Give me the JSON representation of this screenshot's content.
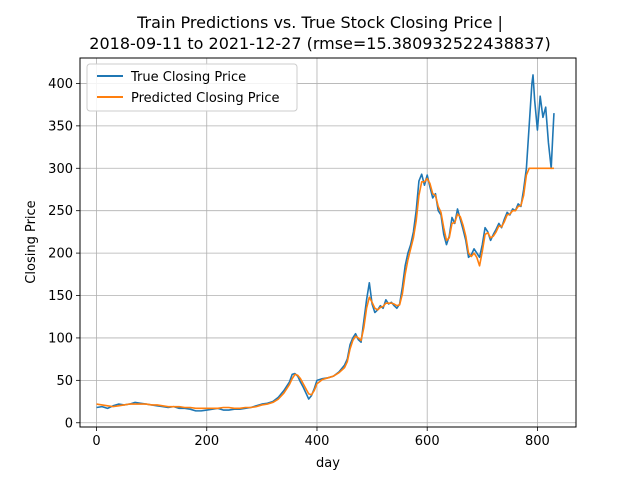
{
  "chart_data": {
    "type": "line",
    "title_line1": "Train Predictions vs. True Stock Closing Price |",
    "title_line2": "2018-09-11 to 2021-12-27 (rmse=15.380932522438837)",
    "xlabel": "day",
    "ylabel": "Closing Price",
    "xlim": [
      -30,
      870
    ],
    "ylim": [
      -5,
      430
    ],
    "x_ticks": [
      0,
      200,
      400,
      600,
      800
    ],
    "y_ticks": [
      0,
      50,
      100,
      150,
      200,
      250,
      300,
      350,
      400
    ],
    "grid": true,
    "legend_position": "upper-left",
    "series": [
      {
        "name": "True Closing Price",
        "color": "#1f77b4",
        "points": [
          [
            0,
            18
          ],
          [
            10,
            19
          ],
          [
            20,
            17
          ],
          [
            30,
            20
          ],
          [
            40,
            22
          ],
          [
            50,
            21
          ],
          [
            60,
            22
          ],
          [
            70,
            24
          ],
          [
            80,
            23
          ],
          [
            90,
            22
          ],
          [
            100,
            21
          ],
          [
            110,
            20
          ],
          [
            120,
            19
          ],
          [
            130,
            18
          ],
          [
            140,
            19
          ],
          [
            150,
            17
          ],
          [
            160,
            17
          ],
          [
            170,
            16
          ],
          [
            180,
            14
          ],
          [
            190,
            14
          ],
          [
            200,
            15
          ],
          [
            210,
            16
          ],
          [
            220,
            17
          ],
          [
            230,
            15
          ],
          [
            240,
            15
          ],
          [
            250,
            16
          ],
          [
            260,
            16
          ],
          [
            270,
            17
          ],
          [
            280,
            18
          ],
          [
            290,
            20
          ],
          [
            300,
            22
          ],
          [
            310,
            23
          ],
          [
            320,
            25
          ],
          [
            330,
            30
          ],
          [
            340,
            38
          ],
          [
            350,
            48
          ],
          [
            355,
            57
          ],
          [
            360,
            58
          ],
          [
            365,
            55
          ],
          [
            370,
            48
          ],
          [
            375,
            42
          ],
          [
            380,
            35
          ],
          [
            385,
            28
          ],
          [
            390,
            32
          ],
          [
            395,
            40
          ],
          [
            400,
            50
          ],
          [
            410,
            52
          ],
          [
            420,
            53
          ],
          [
            430,
            55
          ],
          [
            440,
            60
          ],
          [
            450,
            68
          ],
          [
            455,
            75
          ],
          [
            460,
            92
          ],
          [
            465,
            100
          ],
          [
            470,
            105
          ],
          [
            475,
            98
          ],
          [
            480,
            95
          ],
          [
            485,
            120
          ],
          [
            490,
            145
          ],
          [
            495,
            165
          ],
          [
            500,
            140
          ],
          [
            505,
            130
          ],
          [
            510,
            133
          ],
          [
            515,
            138
          ],
          [
            520,
            135
          ],
          [
            525,
            145
          ],
          [
            530,
            140
          ],
          [
            535,
            142
          ],
          [
            540,
            138
          ],
          [
            545,
            135
          ],
          [
            550,
            140
          ],
          [
            555,
            160
          ],
          [
            560,
            185
          ],
          [
            565,
            200
          ],
          [
            570,
            210
          ],
          [
            575,
            225
          ],
          [
            580,
            250
          ],
          [
            585,
            285
          ],
          [
            590,
            293
          ],
          [
            595,
            280
          ],
          [
            600,
            292
          ],
          [
            605,
            278
          ],
          [
            610,
            265
          ],
          [
            615,
            270
          ],
          [
            620,
            250
          ],
          [
            625,
            245
          ],
          [
            630,
            222
          ],
          [
            635,
            210
          ],
          [
            640,
            220
          ],
          [
            645,
            242
          ],
          [
            650,
            235
          ],
          [
            655,
            252
          ],
          [
            660,
            240
          ],
          [
            665,
            228
          ],
          [
            670,
            215
          ],
          [
            675,
            195
          ],
          [
            680,
            198
          ],
          [
            685,
            205
          ],
          [
            690,
            200
          ],
          [
            695,
            195
          ],
          [
            700,
            210
          ],
          [
            705,
            230
          ],
          [
            710,
            225
          ],
          [
            715,
            215
          ],
          [
            720,
            222
          ],
          [
            725,
            228
          ],
          [
            730,
            235
          ],
          [
            735,
            230
          ],
          [
            740,
            240
          ],
          [
            745,
            248
          ],
          [
            750,
            245
          ],
          [
            755,
            252
          ],
          [
            760,
            250
          ],
          [
            765,
            258
          ],
          [
            770,
            255
          ],
          [
            775,
            275
          ],
          [
            780,
            300
          ],
          [
            785,
            350
          ],
          [
            790,
            400
          ],
          [
            792,
            410
          ],
          [
            795,
            380
          ],
          [
            800,
            345
          ],
          [
            805,
            385
          ],
          [
            810,
            360
          ],
          [
            815,
            372
          ],
          [
            820,
            330
          ],
          [
            825,
            300
          ],
          [
            828,
            340
          ],
          [
            830,
            365
          ]
        ]
      },
      {
        "name": "Predicted Closing Price",
        "color": "#ff7f0e",
        "points": [
          [
            0,
            22
          ],
          [
            10,
            21
          ],
          [
            20,
            20
          ],
          [
            30,
            19
          ],
          [
            40,
            20
          ],
          [
            50,
            21
          ],
          [
            60,
            22
          ],
          [
            70,
            22
          ],
          [
            80,
            22
          ],
          [
            90,
            22
          ],
          [
            100,
            21
          ],
          [
            110,
            21
          ],
          [
            120,
            20
          ],
          [
            130,
            19
          ],
          [
            140,
            19
          ],
          [
            150,
            19
          ],
          [
            160,
            18
          ],
          [
            170,
            18
          ],
          [
            180,
            17
          ],
          [
            190,
            17
          ],
          [
            200,
            17
          ],
          [
            210,
            17
          ],
          [
            220,
            17
          ],
          [
            230,
            18
          ],
          [
            240,
            18
          ],
          [
            250,
            17
          ],
          [
            260,
            17
          ],
          [
            270,
            18
          ],
          [
            280,
            18
          ],
          [
            290,
            19
          ],
          [
            300,
            21
          ],
          [
            310,
            22
          ],
          [
            320,
            24
          ],
          [
            330,
            28
          ],
          [
            340,
            35
          ],
          [
            350,
            45
          ],
          [
            355,
            52
          ],
          [
            360,
            57
          ],
          [
            365,
            56
          ],
          [
            370,
            52
          ],
          [
            375,
            46
          ],
          [
            380,
            40
          ],
          [
            385,
            34
          ],
          [
            390,
            33
          ],
          [
            395,
            38
          ],
          [
            400,
            46
          ],
          [
            410,
            51
          ],
          [
            420,
            53
          ],
          [
            430,
            55
          ],
          [
            440,
            59
          ],
          [
            450,
            65
          ],
          [
            455,
            72
          ],
          [
            460,
            87
          ],
          [
            465,
            97
          ],
          [
            470,
            102
          ],
          [
            475,
            100
          ],
          [
            480,
            97
          ],
          [
            485,
            112
          ],
          [
            490,
            135
          ],
          [
            495,
            148
          ],
          [
            500,
            142
          ],
          [
            505,
            135
          ],
          [
            510,
            133
          ],
          [
            515,
            136
          ],
          [
            520,
            137
          ],
          [
            525,
            141
          ],
          [
            530,
            141
          ],
          [
            535,
            141
          ],
          [
            540,
            140
          ],
          [
            545,
            138
          ],
          [
            550,
            139
          ],
          [
            555,
            152
          ],
          [
            560,
            175
          ],
          [
            565,
            192
          ],
          [
            570,
            205
          ],
          [
            575,
            218
          ],
          [
            580,
            238
          ],
          [
            585,
            268
          ],
          [
            590,
            284
          ],
          [
            595,
            284
          ],
          [
            600,
            288
          ],
          [
            605,
            282
          ],
          [
            610,
            270
          ],
          [
            615,
            268
          ],
          [
            620,
            255
          ],
          [
            625,
            248
          ],
          [
            630,
            230
          ],
          [
            635,
            215
          ],
          [
            640,
            218
          ],
          [
            645,
            235
          ],
          [
            650,
            236
          ],
          [
            655,
            246
          ],
          [
            660,
            243
          ],
          [
            665,
            233
          ],
          [
            670,
            220
          ],
          [
            675,
            200
          ],
          [
            680,
            196
          ],
          [
            685,
            200
          ],
          [
            690,
            195
          ],
          [
            695,
            185
          ],
          [
            700,
            202
          ],
          [
            705,
            222
          ],
          [
            710,
            224
          ],
          [
            715,
            218
          ],
          [
            720,
            220
          ],
          [
            725,
            225
          ],
          [
            730,
            232
          ],
          [
            735,
            231
          ],
          [
            740,
            237
          ],
          [
            745,
            245
          ],
          [
            750,
            246
          ],
          [
            755,
            250
          ],
          [
            760,
            250
          ],
          [
            765,
            255
          ],
          [
            770,
            256
          ],
          [
            775,
            268
          ],
          [
            780,
            292
          ],
          [
            785,
            300
          ],
          [
            790,
            300
          ],
          [
            800,
            300
          ],
          [
            810,
            300
          ],
          [
            820,
            300
          ],
          [
            830,
            300
          ]
        ]
      }
    ]
  }
}
